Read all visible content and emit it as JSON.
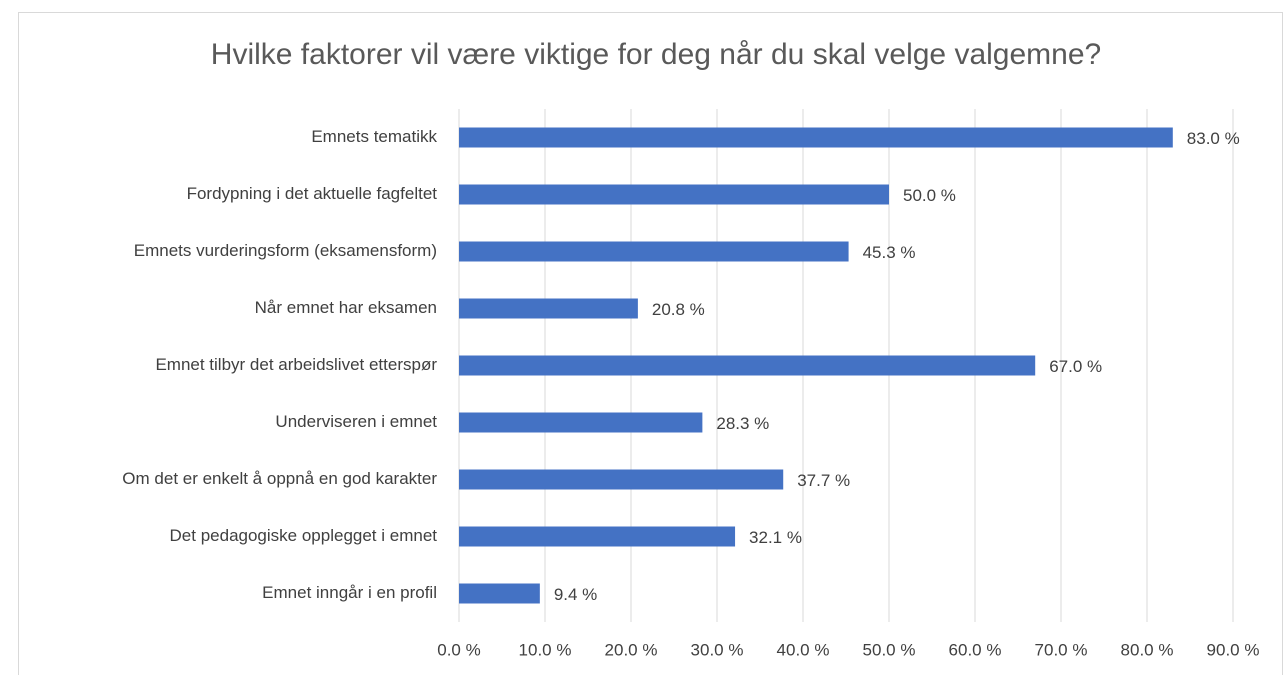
{
  "chart_data": {
    "type": "barh",
    "title": "Hvilke faktorer vil være viktige for deg når du skal velge valgemne?",
    "categories": [
      "Emnets tematikk",
      "Fordypning i det aktuelle fagfeltet",
      "Emnets vurderingsform (eksamensform)",
      "Når emnet har eksamen",
      "Emnet tilbyr det arbeidslivet etterspør",
      "Underviseren i emnet",
      "Om det er enkelt å oppnå en god karakter",
      "Det pedagogiske opplegget i emnet",
      "Emnet inngår i en profil"
    ],
    "values": [
      83.0,
      50.0,
      45.3,
      20.8,
      67.0,
      28.3,
      37.7,
      32.1,
      9.4
    ],
    "value_labels": [
      "83.0 %",
      "50.0 %",
      "45.3 %",
      "20.8 %",
      "67.0 %",
      "28.3 %",
      "37.7 %",
      "32.1 %",
      "9.4 %"
    ],
    "color": "#4472c4",
    "xlim": [
      0,
      90
    ],
    "xticks": [
      {
        "value": 0,
        "label": "0.0 %"
      },
      {
        "value": 10,
        "label": "10.0 %"
      },
      {
        "value": 20,
        "label": "20.0 %"
      },
      {
        "value": 30,
        "label": "30.0 %"
      },
      {
        "value": 40,
        "label": "40.0 %"
      },
      {
        "value": 50,
        "label": "50.0 %"
      },
      {
        "value": 60,
        "label": "60.0 %"
      },
      {
        "value": 70,
        "label": "70.0 %"
      },
      {
        "value": 80,
        "label": "80.0 %"
      },
      {
        "value": 90,
        "label": "90.0 %"
      }
    ],
    "grid": true
  }
}
